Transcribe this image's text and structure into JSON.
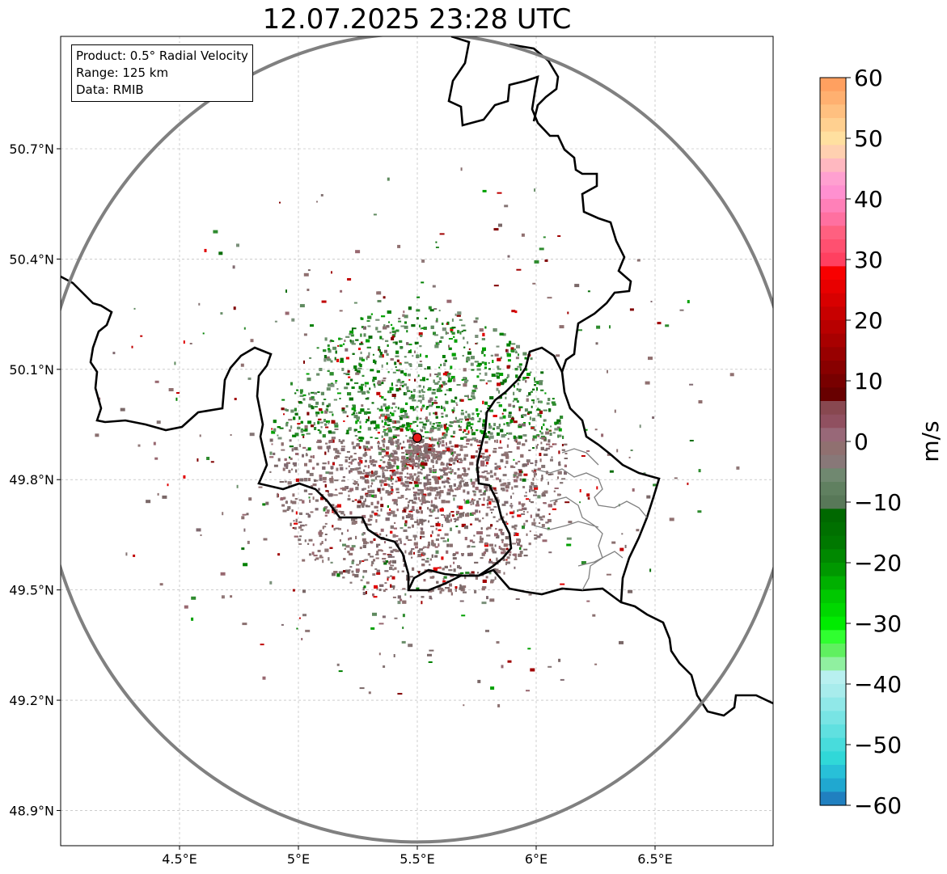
{
  "title": "12.07.2025 23:28 UTC",
  "info": {
    "product": "Product: 0.5° Radial Velocity",
    "range": "Range: 125 km",
    "source": "Data: RMIB"
  },
  "axes": {
    "x_ticks": [
      "4.5°E",
      "5°E",
      "5.5°E",
      "6°E",
      "6.5°E"
    ],
    "y_ticks": [
      "50.7°N",
      "50.4°N",
      "50.1°N",
      "49.8°N",
      "49.5°N",
      "49.2°N",
      "48.9°N"
    ]
  },
  "colorbar": {
    "label": "m/s",
    "ticks": [
      "60",
      "50",
      "40",
      "30",
      "20",
      "10",
      "0",
      "−10",
      "−20",
      "−30",
      "−40",
      "−50",
      "−60"
    ],
    "colors_top_to_bottom": [
      "#ffa060",
      "#ffb070",
      "#ffc080",
      "#ffd090",
      "#ffe0a0",
      "#ffd0b0",
      "#ffb8c0",
      "#ffa0d0",
      "#ff90d0",
      "#ff80b8",
      "#ff70a0",
      "#ff6080",
      "#ff5070",
      "#ff4060",
      "#f80000",
      "#e80000",
      "#d80000",
      "#c80000",
      "#b80000",
      "#a80000",
      "#980000",
      "#880000",
      "#780000",
      "#680000",
      "#884850",
      "#905060",
      "#986878",
      "#907070",
      "#887878",
      "#708870",
      "#608060",
      "#587858",
      "#006800",
      "#007000",
      "#007800",
      "#008800",
      "#009800",
      "#00b000",
      "#00c800",
      "#00d800",
      "#00ec00",
      "#30ff30",
      "#60f060",
      "#90f0a0",
      "#b8f0f0",
      "#a8ecec",
      "#90e8e8",
      "#78e4e4",
      "#60e0e0",
      "#48dcdc",
      "#30d8d8",
      "#28c0d8",
      "#20a8d0",
      "#2080c0"
    ]
  },
  "radar": {
    "site_lon": 5.5,
    "site_lat": 49.914,
    "range_ring_color": "#808080",
    "site_color": "#e81818"
  },
  "colors": {
    "border": "#000000",
    "grid": "#b0b0b0",
    "admin_border": "#808080"
  }
}
